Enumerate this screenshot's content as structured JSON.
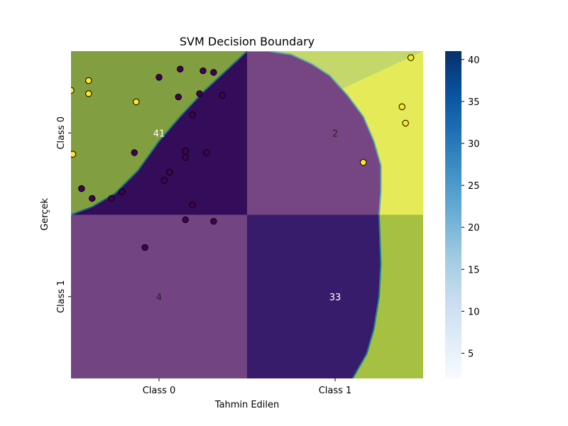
{
  "chart_data": {
    "type": "heatmap",
    "title": "SVM Decision Boundary",
    "xlabel": "Tahmin Edilen",
    "ylabel": "Gerçek",
    "x_categories": [
      "Class 0",
      "Class 1"
    ],
    "y_categories": [
      "Class 0",
      "Class 1"
    ],
    "matrix": [
      [
        41,
        2
      ],
      [
        4,
        33
      ]
    ],
    "colorbar": {
      "colormap": "Blues",
      "range": [
        2,
        41
      ],
      "ticks": [
        5,
        10,
        15,
        20,
        25,
        30,
        35,
        40
      ]
    },
    "overlay": {
      "colormap": "viridis",
      "region_colors": {
        "class_0": "#440154",
        "class_1_light": "#dde318",
        "class_1_mid": "#b0c931",
        "boundary": "#21918c"
      },
      "boundary_points": [
        [
          -0.5,
          0.5
        ],
        [
          -0.38,
          0.45
        ],
        [
          -0.25,
          0.37
        ],
        [
          -0.12,
          0.23
        ],
        [
          0.0,
          0.05
        ],
        [
          0.12,
          -0.1
        ],
        [
          0.25,
          -0.25
        ],
        [
          0.38,
          -0.38
        ],
        [
          0.5,
          -0.5
        ],
        [
          0.62,
          -0.5
        ],
        [
          0.75,
          -0.48
        ],
        [
          0.87,
          -0.42
        ],
        [
          0.97,
          -0.35
        ],
        [
          1.07,
          -0.23
        ],
        [
          1.16,
          -0.1
        ],
        [
          1.22,
          0.05
        ],
        [
          1.26,
          0.2
        ],
        [
          1.26,
          0.35
        ],
        [
          1.25,
          0.5
        ],
        [
          1.26,
          0.8
        ],
        [
          1.25,
          1.0
        ],
        [
          1.22,
          1.2
        ],
        [
          1.18,
          1.35
        ],
        [
          1.1,
          1.5
        ]
      ],
      "points_class_0": [
        [
          0.12,
          -0.39
        ],
        [
          0.25,
          -0.38
        ],
        [
          0.31,
          -0.37
        ],
        [
          0.0,
          -0.34
        ],
        [
          0.23,
          -0.24
        ],
        [
          0.11,
          -0.22
        ],
        [
          0.36,
          -0.23
        ],
        [
          0.15,
          0.11
        ],
        [
          0.03,
          0.29
        ],
        [
          0.19,
          0.44
        ],
        [
          0.19,
          -0.11
        ],
        [
          0.27,
          0.12
        ],
        [
          0.15,
          0.15
        ],
        [
          0.06,
          0.24
        ],
        [
          -0.14,
          0.12
        ],
        [
          -0.44,
          0.34
        ],
        [
          -0.38,
          0.4
        ],
        [
          -0.27,
          0.4
        ],
        [
          -0.21,
          0.36
        ],
        [
          0.31,
          0.54
        ],
        [
          0.15,
          0.53
        ],
        [
          -0.08,
          0.7
        ]
      ],
      "points_class_1": [
        [
          -0.5,
          -0.26
        ],
        [
          -0.4,
          -0.32
        ],
        [
          -0.4,
          -0.24
        ],
        [
          -0.13,
          -0.19
        ],
        [
          -0.49,
          0.13
        ],
        [
          1.16,
          0.18
        ],
        [
          1.43,
          -0.46
        ],
        [
          1.38,
          -0.16
        ],
        [
          1.4,
          -0.06
        ]
      ]
    }
  }
}
